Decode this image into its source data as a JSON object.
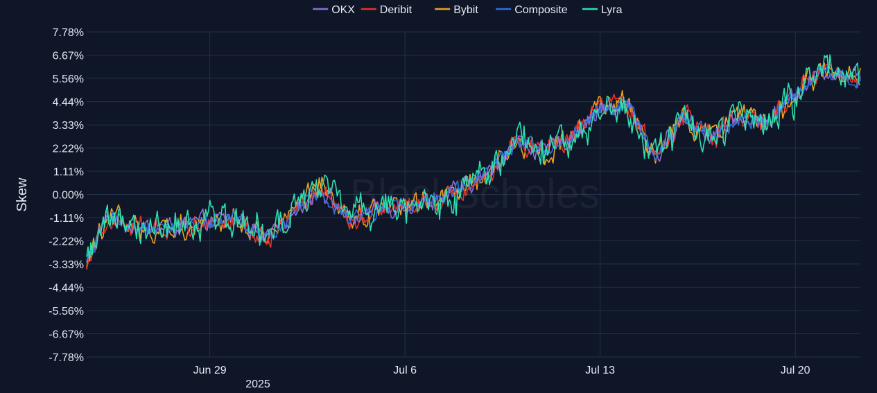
{
  "chart_data": {
    "type": "line",
    "title": "",
    "xlabel": "",
    "ylabel": "Skew",
    "watermark": "BlockScholes",
    "x_ticks": [
      "Jun 29",
      "Jul 6",
      "Jul 13",
      "Jul 20"
    ],
    "x_year_label": "2025",
    "x_range": [
      "2025-06-24T14:00",
      "2025-07-22T08:00"
    ],
    "y_tick_labels": [
      "7.78%",
      "6.67%",
      "5.56%",
      "4.44%",
      "3.33%",
      "2.22%",
      "1.11%",
      "0.00%",
      "-1.11%",
      "-2.22%",
      "-3.33%",
      "-4.44%",
      "-5.56%",
      "-6.67%",
      "-7.78%"
    ],
    "ylim": [
      -7.78,
      7.78
    ],
    "grid": true,
    "legend_position": "top-center",
    "colors": {
      "background": "#0f1628",
      "grid": "#24304a",
      "text": "#e6e9f2"
    },
    "key_points": {
      "x": [
        "2025-06-24T14:00",
        "2025-06-25T08:00",
        "2025-06-26T00:00",
        "2025-06-27T00:00",
        "2025-06-28T00:00",
        "2025-06-29T00:00",
        "2025-06-30T00:00",
        "2025-07-01T00:00",
        "2025-07-02T00:00",
        "2025-07-03T00:00",
        "2025-07-04T00:00",
        "2025-07-05T00:00",
        "2025-07-06T00:00",
        "2025-07-07T00:00",
        "2025-07-08T00:00",
        "2025-07-09T00:00",
        "2025-07-10T00:00",
        "2025-07-11T00:00",
        "2025-07-12T00:00",
        "2025-07-13T00:00",
        "2025-07-14T00:00",
        "2025-07-15T00:00",
        "2025-07-16T00:00",
        "2025-07-17T00:00",
        "2025-07-18T00:00",
        "2025-07-19T00:00",
        "2025-07-20T00:00",
        "2025-07-21T00:00",
        "2025-07-22T08:00"
      ],
      "y": [
        -3.3,
        -1.0,
        -1.4,
        -1.7,
        -1.5,
        -1.3,
        -1.1,
        -2.2,
        -0.8,
        0.3,
        -1.2,
        -0.7,
        -0.5,
        -0.3,
        0.2,
        1.0,
        2.6,
        2.0,
        2.8,
        4.1,
        4.2,
        1.8,
        3.7,
        2.8,
        3.6,
        3.5,
        4.8,
        6.0,
        5.5
      ]
    },
    "series": [
      {
        "name": "OKX",
        "color": "#8c6fd4"
      },
      {
        "name": "Deribit",
        "color": "#e8322b"
      },
      {
        "name": "Bybit",
        "color": "#f0a020"
      },
      {
        "name": "Composite",
        "color": "#2f6fe0"
      },
      {
        "name": "Lyra",
        "color": "#2ee0b0"
      }
    ]
  }
}
